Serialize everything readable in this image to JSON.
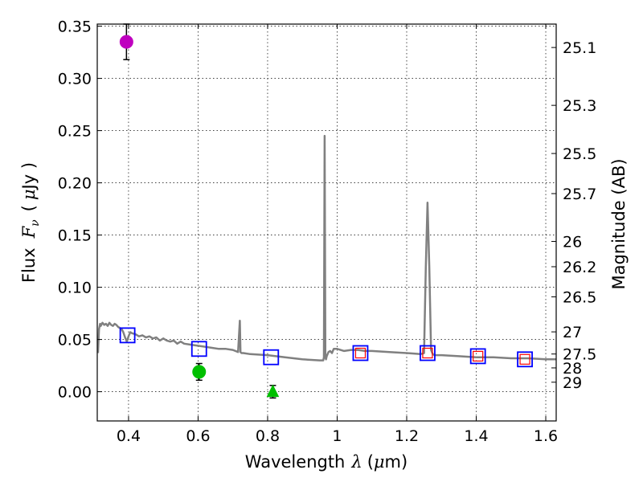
{
  "chart_data": {
    "type": "scatter",
    "xlabel": "Wavelength",
    "xlabel_symbol": "λ",
    "xlabel_unit_open": "(",
    "xlabel_unit_mu": "μ",
    "xlabel_unit_rest": "m)",
    "ylabel": "Flux",
    "ylabel_symbol": "F",
    "ylabel_subscript": "ν",
    "ylabel_unit_open": "(",
    "ylabel_unit_mu": "μ",
    "ylabel_unit_rest": "Jy )",
    "y2label": "Magnitude (AB)",
    "xlim": [
      0.31,
      1.63
    ],
    "ylim": [
      -0.028,
      0.352
    ],
    "x_ticks": [
      0.4,
      0.6,
      0.8,
      1.0,
      1.2,
      1.4,
      1.6
    ],
    "x_tick_labels": [
      "0.4",
      "0.6",
      "0.8",
      "1",
      "1.2",
      "1.4",
      "1.6"
    ],
    "y_ticks": [
      0.0,
      0.05,
      0.1,
      0.15,
      0.2,
      0.25,
      0.3,
      0.35
    ],
    "y_tick_labels": [
      "0.00",
      "0.05",
      "0.10",
      "0.15",
      "0.20",
      "0.25",
      "0.30",
      "0.35"
    ],
    "grid": true,
    "magnitude_ticks": [
      {
        "label": "25.1",
        "flux": 0.3296
      },
      {
        "label": "25.3",
        "flux": 0.2742
      },
      {
        "label": "25.5",
        "flux": 0.2281
      },
      {
        "label": "25.7",
        "flux": 0.1897
      },
      {
        "label": "26",
        "flux": 0.1439
      },
      {
        "label": "26.2",
        "flux": 0.1197
      },
      {
        "label": "26.5",
        "flux": 0.0908
      },
      {
        "label": "27",
        "flux": 0.0573
      },
      {
        "label": "27.5",
        "flux": 0.0361
      },
      {
        "label": "28",
        "flux": 0.0228
      },
      {
        "label": "29",
        "flux": 0.0091
      }
    ],
    "series": [
      {
        "name": "model-spectrum",
        "kind": "line",
        "color": "#808080",
        "x": [
          0.312,
          0.315,
          0.318,
          0.32,
          0.325,
          0.33,
          0.335,
          0.34,
          0.345,
          0.35,
          0.355,
          0.36,
          0.365,
          0.37,
          0.38,
          0.385,
          0.39,
          0.395,
          0.4,
          0.405,
          0.41,
          0.42,
          0.43,
          0.44,
          0.45,
          0.46,
          0.47,
          0.48,
          0.49,
          0.5,
          0.51,
          0.52,
          0.53,
          0.54,
          0.55,
          0.56,
          0.58,
          0.6,
          0.62,
          0.64,
          0.66,
          0.68,
          0.7,
          0.715,
          0.72,
          0.722,
          0.725,
          0.73,
          0.75,
          0.8,
          0.85,
          0.9,
          0.95,
          0.96,
          0.962,
          0.964,
          0.966,
          0.968,
          0.97,
          0.975,
          0.98,
          0.985,
          0.99,
          1.0,
          1.02,
          1.04,
          1.06,
          1.08,
          1.1,
          1.15,
          1.2,
          1.24,
          1.25,
          1.255,
          1.26,
          1.265,
          1.27,
          1.275,
          1.28,
          1.3,
          1.35,
          1.4,
          1.45,
          1.5,
          1.55,
          1.6,
          1.63
        ],
        "y": [
          0.037,
          0.06,
          0.065,
          0.063,
          0.066,
          0.064,
          0.065,
          0.063,
          0.066,
          0.064,
          0.063,
          0.065,
          0.064,
          0.062,
          0.06,
          0.057,
          0.052,
          0.048,
          0.053,
          0.057,
          0.056,
          0.055,
          0.053,
          0.054,
          0.052,
          0.053,
          0.051,
          0.052,
          0.049,
          0.051,
          0.049,
          0.048,
          0.049,
          0.046,
          0.048,
          0.046,
          0.045,
          0.044,
          0.043,
          0.042,
          0.041,
          0.041,
          0.04,
          0.038,
          0.068,
          0.038,
          0.037,
          0.037,
          0.036,
          0.035,
          0.033,
          0.031,
          0.03,
          0.03,
          0.033,
          0.245,
          0.033,
          0.031,
          0.034,
          0.038,
          0.039,
          0.037,
          0.041,
          0.041,
          0.039,
          0.04,
          0.04,
          0.039,
          0.039,
          0.038,
          0.037,
          0.036,
          0.037,
          0.12,
          0.181,
          0.12,
          0.04,
          0.036,
          0.035,
          0.035,
          0.034,
          0.033,
          0.033,
          0.032,
          0.032,
          0.031,
          0.031
        ]
      },
      {
        "name": "model-photometry",
        "kind": "open-square",
        "color": "#0000ff",
        "x": [
          0.397,
          0.603,
          0.81,
          1.067,
          1.26,
          1.405,
          1.54
        ],
        "y": [
          0.054,
          0.041,
          0.033,
          0.037,
          0.037,
          0.034,
          0.031
        ]
      },
      {
        "name": "observed-photometry",
        "kind": "open-square",
        "color": "#ff0000",
        "x": [
          1.067,
          1.26,
          1.405,
          1.54
        ],
        "y": [
          0.037,
          0.037,
          0.034,
          0.031
        ]
      },
      {
        "name": "detection-magenta",
        "kind": "circle",
        "color": "#bf00bf",
        "x": [
          0.394
        ],
        "y": [
          0.335
        ],
        "yerr": [
          0.017
        ]
      },
      {
        "name": "detection-green",
        "kind": "circle",
        "color": "#00bf00",
        "x": [
          0.603
        ],
        "y": [
          0.019
        ],
        "yerr": [
          0.008
        ]
      },
      {
        "name": "upper-limit-green",
        "kind": "triangle",
        "color": "#00bf00",
        "x": [
          0.815
        ],
        "y": [
          0.0
        ],
        "yerr": [
          0.006
        ]
      }
    ]
  }
}
